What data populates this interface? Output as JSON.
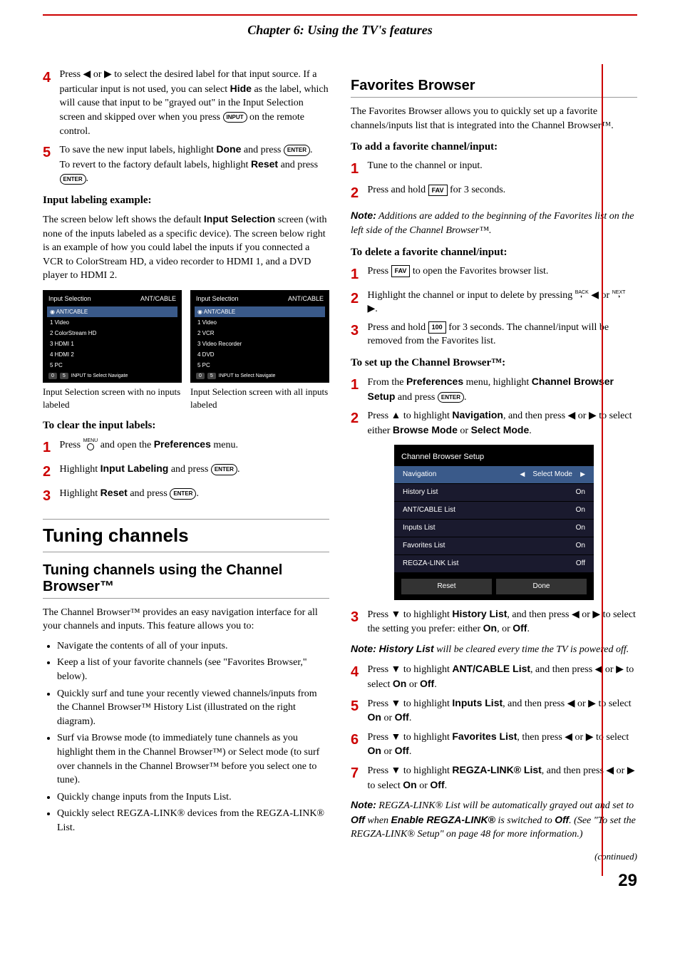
{
  "chapter_title": "Chapter 6: Using the TV's features",
  "left": {
    "step4": "Press ◀ or ▶ to select the desired label for that input source. If a particular input is not used, you can select ",
    "step4_hide": "Hide",
    "step4_cont": " as the label, which will cause that input to be \"grayed out\" in the Input Selection screen and skipped over when you press ",
    "step4_end": " on the remote control.",
    "step5a": "To save the new input labels, highlight ",
    "step5_done": "Done",
    "step5b": " and press ",
    "step5c": ".",
    "step5_revert": "To revert to the factory default labels, highlight ",
    "step5_reset": "Reset",
    "step5_revert_end": " and press ",
    "labeling_example": "Input labeling example:",
    "labeling_para": "The screen below left shows the default ",
    "input_selection": "Input Selection",
    "labeling_para2": " screen (with none of the inputs labeled as a specific device). The screen below right is an example of how you could label the inputs if you connected a VCR to ColorStream HD, a video recorder to HDMI 1, and a DVD player to HDMI 2.",
    "screenshot1": {
      "title": "Input Selection",
      "badge": "ANT/CABLE",
      "rows": [
        "ANT/CABLE",
        "Video",
        "ColorStream HD",
        "HDMI 1",
        "HDMI 2",
        "PC"
      ],
      "footer": "INPUT to Select      Navigate",
      "caption": "Input Selection screen with no inputs labeled"
    },
    "screenshot2": {
      "title": "Input Selection",
      "badge": "ANT/CABLE",
      "rows": [
        "ANT/CABLE",
        "Video",
        "VCR",
        "Video Recorder",
        "DVD",
        "PC"
      ],
      "footer": "INPUT to Select      Navigate",
      "caption": "Input Selection screen with all inputs labeled"
    },
    "clear_heading": "To clear the input labels:",
    "clear1a": "Press ",
    "clear1b": " and open the ",
    "clear1_pref": "Preferences",
    "clear1c": " menu.",
    "clear2a": "Highlight ",
    "clear2_il": "Input Labeling",
    "clear2b": " and press ",
    "clear3a": "Highlight ",
    "clear3_reset": "Reset",
    "clear3b": " and press ",
    "tuning_h": "Tuning channels",
    "tuning_sub": "Tuning channels using the Channel Browser™",
    "tuning_intro": "The Channel Browser™ provides an easy navigation interface for all your channels and inputs. This feature allows you to:",
    "bullets": [
      "Navigate the contents of all of your inputs.",
      "Keep a list of your favorite channels (see \"Favorites Browser,\" below).",
      "Quickly surf and tune your recently viewed channels/inputs from the Channel Browser™ History List (illustrated on the right diagram).",
      "Surf via Browse mode (to immediately tune channels as you highlight them in the Channel Browser™) or Select mode (to surf over channels in the Channel Browser™ before you select one to tune).",
      "Quickly change inputs from the Inputs List.",
      "Quickly select REGZA-LINK® devices from the REGZA-LINK® List."
    ]
  },
  "right": {
    "fav_h": "Favorites Browser",
    "fav_intro": "The Favorites Browser allows you to quickly set up a favorite channels/inputs list that is integrated into the Channel Browser™.",
    "add_h": "To add a favorite channel/input:",
    "add1": "Tune to the channel or input.",
    "add2a": "Press and hold ",
    "add2b": " for 3 seconds.",
    "note1a": "Note:",
    "note1b": " Additions are added to the beginning of the Favorites list on the left side of the Channel Browser™.",
    "del_h": "To delete a favorite channel/input:",
    "del1a": "Press ",
    "del1b": " to open the Favorites browser list.",
    "del2": "Highlight the channel or input to delete by pressing ",
    "del2b": " ◀ or ",
    "del2c": " ▶.",
    "del3a": "Press and hold ",
    "del3b": " for 3 seconds. The channel/input will be removed from the Favorites list.",
    "setup_h": "To set up the Channel Browser™:",
    "setup1a": "From the ",
    "setup1_pref": "Preferences",
    "setup1b": " menu, highlight ",
    "setup1_cbs": "Channel Browser Setup",
    "setup1c": " and press ",
    "setup2a": "Press ▲ to highlight ",
    "setup2_nav": "Navigation",
    "setup2b": ", and then press ◀ or ▶ to select either ",
    "setup2_bm": "Browse Mode",
    "setup2c": " or ",
    "setup2_sm": "Select Mode",
    "setup2d": ".",
    "menu": {
      "title": "Channel Browser Setup",
      "rows": [
        {
          "label": "Navigation",
          "value": "Select Mode",
          "sel": true
        },
        {
          "label": "History List",
          "value": "On"
        },
        {
          "label": "ANT/CABLE List",
          "value": "On"
        },
        {
          "label": "Inputs List",
          "value": "On"
        },
        {
          "label": "Favorites List",
          "value": "On"
        },
        {
          "label": "REGZA-LINK List",
          "value": "Off"
        }
      ],
      "btn_reset": "Reset",
      "btn_done": "Done"
    },
    "setup3a": "Press ▼ to highlight ",
    "setup3_hl": "History List",
    "setup3b": ", and then press ◀ or ▶ to select the setting you prefer: either ",
    "setup3_on": "On",
    "setup3c": ", or ",
    "setup3_off": "Off",
    "setup3d": ".",
    "note2a": "Note: History List",
    "note2b": " will be cleared every time the TV is powered off.",
    "setup4a": "Press ▼ to highlight ",
    "setup4_acl": "ANT/CABLE List",
    "setup4b": ", and then press ◀ or ▶ to select ",
    "on": "On",
    "or": " or ",
    "off": "Off",
    "period": ".",
    "setup5a": "Press ▼ to highlight ",
    "setup5_il": "Inputs List",
    "setup5b": ", and then press ◀ or ▶ to select ",
    "setup6a": "Press ▼ to highlight ",
    "setup6_fl": "Favorites List",
    "setup6b": ", then press ◀ or ▶ to select ",
    "setup7a": "Press ▼ to highlight ",
    "setup7_rl": "REGZA-LINK® List",
    "setup7b": ", and then press ◀ or ▶ to select ",
    "note3a": "Note:",
    "note3b": " REGZA-LINK® List will be automatically grayed out and set to ",
    "note3_off": "Off",
    "note3c": " when ",
    "note3_enable": "Enable REGZA-LINK®",
    "note3d": " is switched to ",
    "note3_off2": "Off",
    "note3e": ". (See \"To set the REGZA-LINK® Setup\" on page 48 for more information.)",
    "continued": "(continued)",
    "page": "29"
  },
  "btn": {
    "input": "INPUT",
    "enter": "ENTER",
    "fav": "FAV",
    "hundred": "1̄0̄0̄",
    "back": "BACK",
    "next": "NEXT",
    "menu": "MENU"
  }
}
